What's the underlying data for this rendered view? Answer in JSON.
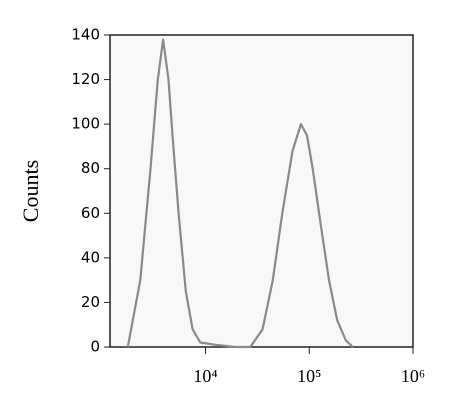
{
  "chart_data": {
    "type": "line",
    "ylabel": "Counts",
    "x": [
      1780,
      2350,
      2950,
      3470,
      3900,
      4400,
      4800,
      5500,
      6450,
      7500,
      8900,
      12500,
      19500,
      27000,
      35500,
      44500,
      55000,
      69000,
      83000,
      95000,
      108000,
      129000,
      155000,
      186000,
      225000,
      263000
    ],
    "series": [
      {
        "color": "#8a8a8a",
        "values": [
          0,
          30,
          80,
          120,
          138,
          120,
          95,
          60,
          25,
          8,
          2,
          1,
          0,
          0,
          8,
          30,
          60,
          88,
          100,
          95,
          80,
          55,
          30,
          12,
          3,
          0
        ]
      }
    ],
    "xlog": true,
    "xlim": [
      1200,
      1000000
    ],
    "xticks": [
      {
        "value": 10000,
        "label": "10⁴"
      },
      {
        "value": 100000,
        "label": "10⁵"
      },
      {
        "value": 1000000,
        "label": "10⁶"
      }
    ],
    "ylim": [
      0,
      140
    ],
    "yticks": [
      0,
      20,
      40,
      60,
      80,
      100,
      120,
      140
    ],
    "grid": false
  }
}
